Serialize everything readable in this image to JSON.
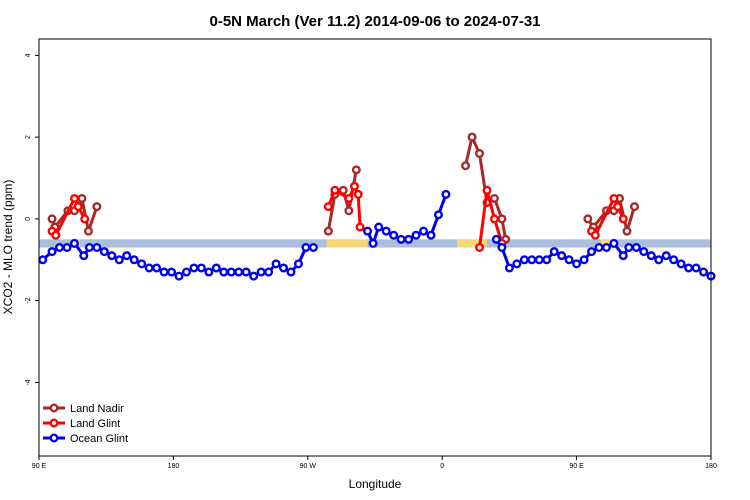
{
  "colors": {
    "land_nadir": "#a52a2a",
    "land_glint": "#ff0000",
    "ocean_glint": "#0000ee",
    "band_blue": "#a9bfdc",
    "band_orange": "#f9d67a"
  },
  "chart_data": {
    "type": "line",
    "title": "0-5N March (Ver 11.2)   2014-09-06 to 2024-07-31",
    "xlabel": "Longitude",
    "ylabel": "XCO2 - MLO trend (ppm)",
    "xlim": [
      0,
      360
    ],
    "ylim": [
      -5.8,
      4.4
    ],
    "x_ticks": [
      {
        "value": 0,
        "label": "90 E"
      },
      {
        "value": 72,
        "label": "180"
      },
      {
        "value": 144,
        "label": "90 W"
      },
      {
        "value": 216,
        "label": "0"
      },
      {
        "value": 288,
        "label": "90 E"
      },
      {
        "value": 360,
        "label": "180"
      }
    ],
    "y_ticks": [
      -4,
      -2,
      0,
      2,
      4
    ],
    "grid": false,
    "legend_position": "bottom-left",
    "bands": [
      {
        "x": [
          0,
          360
        ],
        "y": [
          -0.7,
          -0.5
        ],
        "color": "band_blue"
      },
      {
        "x": [
          18,
          22
        ],
        "y": [
          -0.7,
          -0.5
        ],
        "color": "band_orange"
      },
      {
        "x": [
          154,
          176
        ],
        "y": [
          -0.7,
          -0.5
        ],
        "color": "band_orange"
      },
      {
        "x": [
          224,
          240
        ],
        "y": [
          -0.7,
          -0.5
        ],
        "color": "band_orange"
      },
      {
        "x": [
          301,
          306
        ],
        "y": [
          -0.7,
          -0.5
        ],
        "color": "band_orange"
      }
    ],
    "series": [
      {
        "name": "Land Nadir",
        "color": "land_nadir",
        "segments": [
          [
            [
              7,
              0.0
            ],
            [
              8.5,
              -0.2
            ],
            [
              15.5,
              0.2
            ],
            [
              19,
              0.2
            ],
            [
              23,
              0.5
            ],
            [
              26.5,
              -0.3
            ],
            [
              31,
              0.3
            ]
          ],
          [
            [
              155,
              -0.3
            ],
            [
              158.5,
              0.6
            ],
            [
              163,
              0.7
            ],
            [
              166,
              0.2
            ],
            [
              170,
              1.2
            ]
          ],
          [
            [
              228.5,
              1.3
            ],
            [
              232,
              2.0
            ],
            [
              236,
              1.6
            ],
            [
              240,
              0.4
            ],
            [
              244,
              0.5
            ],
            [
              248,
              0.0
            ],
            [
              250,
              -0.5
            ]
          ],
          [
            [
              294,
              0.0
            ],
            [
              297,
              -0.2
            ],
            [
              304,
              0.2
            ],
            [
              308,
              0.2
            ],
            [
              311,
              0.5
            ],
            [
              315,
              -0.3
            ],
            [
              319,
              0.3
            ]
          ]
        ]
      },
      {
        "name": "Land Glint",
        "color": "land_glint",
        "segments": [
          [
            [
              7,
              -0.3
            ],
            [
              9,
              -0.4
            ],
            [
              19,
              0.5
            ],
            [
              21,
              0.3
            ],
            [
              24.5,
              0.0
            ]
          ],
          [
            [
              155,
              0.3
            ],
            [
              158.5,
              0.7
            ],
            [
              166,
              0.5
            ],
            [
              169,
              0.8
            ],
            [
              171,
              0.6
            ],
            [
              172,
              -0.2
            ]
          ],
          [
            [
              236,
              -0.7
            ],
            [
              240,
              0.7
            ],
            [
              244,
              0.0
            ],
            [
              248,
              -0.6
            ]
          ],
          [
            [
              296,
              -0.3
            ],
            [
              298,
              -0.4
            ],
            [
              308,
              0.5
            ],
            [
              310,
              0.3
            ],
            [
              313,
              0.0
            ]
          ]
        ]
      },
      {
        "name": "Ocean Glint",
        "color": "ocean_glint",
        "segments": [
          [
            [
              2,
              -1.0
            ],
            [
              7,
              -0.8
            ],
            [
              11,
              -0.7
            ],
            [
              15,
              -0.7
            ],
            [
              19,
              -0.6
            ],
            [
              24,
              -0.9
            ],
            [
              27,
              -0.7
            ],
            [
              31,
              -0.7
            ],
            [
              35,
              -0.8
            ],
            [
              39,
              -0.9
            ],
            [
              43,
              -1.0
            ],
            [
              47,
              -0.9
            ],
            [
              51,
              -1.0
            ],
            [
              55,
              -1.1
            ],
            [
              59,
              -1.2
            ],
            [
              63,
              -1.2
            ],
            [
              67,
              -1.3
            ],
            [
              71,
              -1.3
            ],
            [
              75,
              -1.4
            ],
            [
              79,
              -1.3
            ],
            [
              83,
              -1.2
            ],
            [
              87,
              -1.2
            ],
            [
              91,
              -1.3
            ],
            [
              95,
              -1.2
            ],
            [
              99,
              -1.3
            ],
            [
              103,
              -1.3
            ],
            [
              107,
              -1.3
            ],
            [
              111,
              -1.3
            ],
            [
              115,
              -1.4
            ],
            [
              119,
              -1.3
            ],
            [
              123,
              -1.3
            ],
            [
              127,
              -1.1
            ],
            [
              131,
              -1.2
            ],
            [
              135,
              -1.3
            ],
            [
              139,
              -1.1
            ],
            [
              143,
              -0.7
            ],
            [
              147,
              -0.7
            ]
          ],
          [
            [
              176,
              -0.3
            ],
            [
              179,
              -0.6
            ],
            [
              182,
              -0.2
            ],
            [
              186,
              -0.3
            ],
            [
              190,
              -0.4
            ],
            [
              194,
              -0.5
            ],
            [
              198,
              -0.5
            ],
            [
              202,
              -0.4
            ],
            [
              206,
              -0.3
            ],
            [
              210,
              -0.4
            ],
            [
              214,
              0.1
            ],
            [
              218,
              0.6
            ]
          ],
          [
            [
              245,
              -0.5
            ],
            [
              248,
              -0.7
            ],
            [
              252,
              -1.2
            ],
            [
              256,
              -1.1
            ],
            [
              260,
              -1.0
            ],
            [
              264,
              -1.0
            ],
            [
              268,
              -1.0
            ],
            [
              272,
              -1.0
            ],
            [
              276,
              -0.8
            ],
            [
              280,
              -0.9
            ],
            [
              284,
              -1.0
            ],
            [
              288,
              -1.1
            ],
            [
              292,
              -1.0
            ],
            [
              296,
              -0.8
            ],
            [
              300,
              -0.7
            ],
            [
              304,
              -0.7
            ],
            [
              308,
              -0.6
            ],
            [
              313,
              -0.9
            ],
            [
              316,
              -0.7
            ],
            [
              320,
              -0.7
            ],
            [
              324,
              -0.8
            ],
            [
              328,
              -0.9
            ],
            [
              332,
              -1.0
            ],
            [
              336,
              -0.9
            ],
            [
              340,
              -1.0
            ],
            [
              344,
              -1.1
            ],
            [
              348,
              -1.2
            ],
            [
              352,
              -1.2
            ],
            [
              356,
              -1.3
            ],
            [
              360,
              -1.4
            ]
          ]
        ]
      }
    ]
  }
}
